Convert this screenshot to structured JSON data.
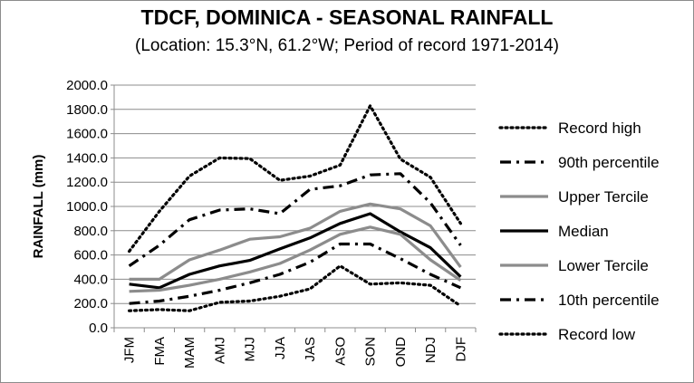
{
  "chart_data": {
    "type": "line",
    "title": "TDCF, DOMINICA - SEASONAL RAINFALL",
    "subtitle": "(Location: 15.3°N, 61.2°W; Period of record 1971-2014)",
    "ylabel": "RAINFALL (mm)",
    "xlabel": "",
    "ylim": [
      0,
      2000
    ],
    "ytick_labels": [
      "0.0",
      "200.0",
      "400.0",
      "600.0",
      "800.0",
      "1000.0",
      "1200.0",
      "1400.0",
      "1600.0",
      "1800.0",
      "2000.0"
    ],
    "categories": [
      "JFM",
      "FMA",
      "MAM",
      "AMJ",
      "MJJ",
      "JJA",
      "JAS",
      "ASO",
      "SON",
      "OND",
      "NDJ",
      "DJF"
    ],
    "grid": "horizontal",
    "legend_position": "right",
    "series": [
      {
        "name": "Record high",
        "style": "dotted",
        "color": "#000000",
        "values": [
          630,
          960,
          1250,
          1400,
          1395,
          1215,
          1250,
          1340,
          1830,
          1390,
          1240,
          860
        ]
      },
      {
        "name": "90th percentile",
        "style": "dashdot",
        "color": "#000000",
        "values": [
          510,
          680,
          890,
          970,
          980,
          940,
          1140,
          1170,
          1260,
          1270,
          1030,
          680
        ]
      },
      {
        "name": "Upper Tercile",
        "style": "solid",
        "color": "#8c8c8c",
        "values": [
          400,
          400,
          560,
          640,
          730,
          750,
          820,
          960,
          1020,
          980,
          840,
          500
        ]
      },
      {
        "name": "Median",
        "style": "solid",
        "color": "#000000",
        "values": [
          360,
          330,
          440,
          510,
          555,
          650,
          740,
          860,
          940,
          790,
          660,
          420
        ]
      },
      {
        "name": "Lower Tercile",
        "style": "solid",
        "color": "#8c8c8c",
        "values": [
          300,
          310,
          350,
          400,
          460,
          530,
          640,
          770,
          830,
          770,
          560,
          390
        ]
      },
      {
        "name": "10th percentile",
        "style": "dashdot",
        "color": "#000000",
        "values": [
          200,
          220,
          260,
          310,
          370,
          440,
          540,
          690,
          690,
          570,
          440,
          330
        ]
      },
      {
        "name": "Record low",
        "style": "dotted",
        "color": "#000000",
        "values": [
          140,
          150,
          140,
          210,
          220,
          260,
          320,
          510,
          360,
          370,
          350,
          180
        ]
      }
    ]
  }
}
